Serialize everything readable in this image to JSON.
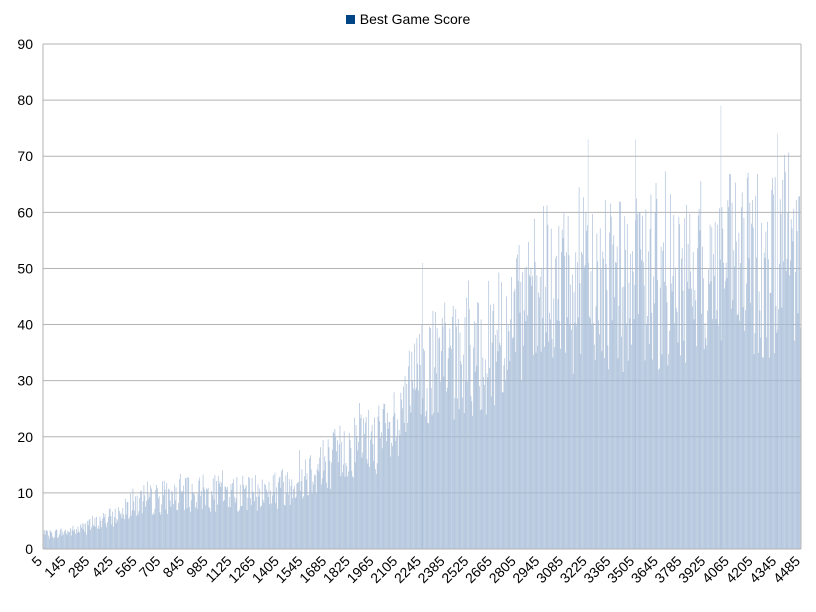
{
  "chart_data": {
    "type": "bar",
    "series": [
      {
        "name": "Best Game Score",
        "color": "#004586",
        "bar_fill": "#a4bad6"
      }
    ],
    "x_start": 5,
    "x_end": 4485,
    "x_step": 5,
    "x_tick_labels": [
      "5",
      "145",
      "285",
      "425",
      "565",
      "705",
      "845",
      "985",
      "1125",
      "1265",
      "1405",
      "1545",
      "1685",
      "1825",
      "1965",
      "2105",
      "2245",
      "2385",
      "2525",
      "2665",
      "2805",
      "2945",
      "3085",
      "3225",
      "3365",
      "3505",
      "3645",
      "3785",
      "3925",
      "4065",
      "4205",
      "4345",
      "4485"
    ],
    "ylim": [
      0,
      90
    ],
    "y_ticks": [
      0,
      10,
      20,
      30,
      40,
      50,
      60,
      70,
      80,
      90
    ],
    "grid": "horizontal",
    "legend_position": "top-center",
    "trend": [
      [
        5,
        3
      ],
      [
        200,
        4
      ],
      [
        285,
        5
      ],
      [
        425,
        7
      ],
      [
        500,
        9
      ],
      [
        565,
        10
      ],
      [
        705,
        11
      ],
      [
        985,
        12
      ],
      [
        1265,
        12
      ],
      [
        1405,
        13
      ],
      [
        1545,
        16
      ],
      [
        1685,
        19
      ],
      [
        1825,
        22
      ],
      [
        1965,
        24
      ],
      [
        2100,
        24
      ],
      [
        2180,
        34
      ],
      [
        2245,
        38
      ],
      [
        2385,
        39
      ],
      [
        2525,
        41
      ],
      [
        2665,
        44
      ],
      [
        2805,
        49
      ],
      [
        2945,
        52
      ],
      [
        3085,
        54
      ],
      [
        3225,
        56
      ],
      [
        3365,
        57
      ],
      [
        3505,
        57
      ],
      [
        3645,
        57
      ],
      [
        3785,
        58
      ],
      [
        3925,
        60
      ],
      [
        4065,
        61
      ],
      [
        4205,
        61
      ],
      [
        4345,
        62
      ],
      [
        4485,
        62
      ]
    ],
    "notable_peaks": [
      {
        "x": 2245,
        "y": 51
      },
      {
        "x": 3225,
        "y": 73
      },
      {
        "x": 3505,
        "y": 73
      },
      {
        "x": 4010,
        "y": 79
      },
      {
        "x": 4345,
        "y": 74
      }
    ]
  }
}
